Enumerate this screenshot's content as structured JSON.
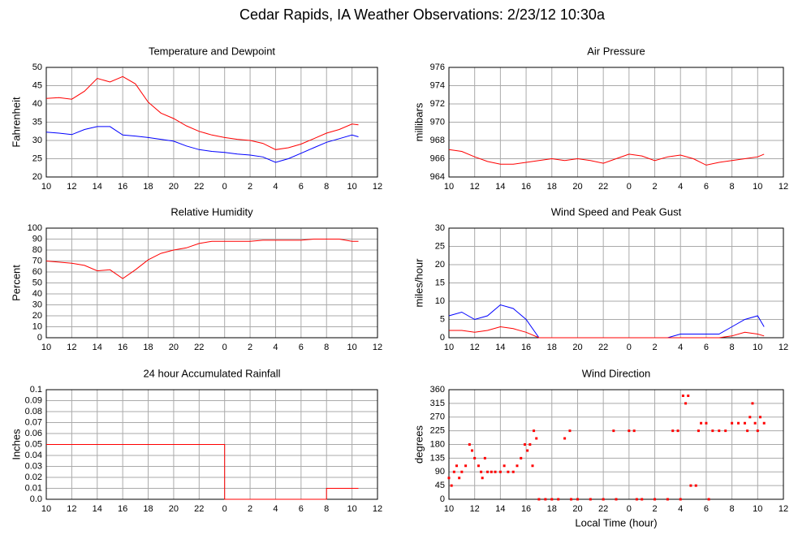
{
  "title": "Cedar Rapids, IA Weather Observations: 2/23/12 10:30a",
  "chart_data": [
    {
      "type": "line",
      "title": "Temperature and Dewpoint",
      "y_label": "Fahrenheit",
      "grid": true,
      "x": [
        10,
        11,
        12,
        13,
        14,
        15,
        16,
        17,
        18,
        19,
        20,
        21,
        22,
        23,
        24,
        25,
        26,
        27,
        28,
        29,
        30,
        31,
        32,
        33,
        34,
        34.5
      ],
      "series": [
        {
          "name": "Temperature",
          "color": "#ff0000",
          "values": [
            41.5,
            41.7,
            41.3,
            43.5,
            47,
            46,
            47.5,
            45.5,
            40.5,
            37.5,
            36,
            34,
            32.5,
            31.5,
            30.8,
            30.3,
            30,
            29.2,
            27.5,
            28,
            29,
            30.5,
            32,
            33,
            34.5,
            34.3
          ]
        },
        {
          "name": "Dewpoint",
          "color": "#0000ff",
          "values": [
            32.3,
            32,
            31.6,
            33,
            33.8,
            33.8,
            31.5,
            31.2,
            30.8,
            30.3,
            29.8,
            28.5,
            27.5,
            27,
            26.7,
            26.3,
            26,
            25.5,
            24,
            25,
            26.5,
            28,
            29.5,
            30.5,
            31.5,
            31
          ]
        }
      ],
      "xlim": [
        10,
        36
      ],
      "xticks": [
        10,
        12,
        14,
        16,
        18,
        20,
        22,
        {
          "value": 24,
          "label": "0"
        },
        {
          "value": 26,
          "label": "2"
        },
        {
          "value": 28,
          "label": "4"
        },
        {
          "value": 30,
          "label": "6"
        },
        {
          "value": 32,
          "label": "8"
        },
        {
          "value": 34,
          "label": "10"
        },
        {
          "value": 36,
          "label": "12"
        }
      ],
      "ylim": [
        20,
        50
      ],
      "yticks": [
        20,
        25,
        30,
        35,
        40,
        45,
        50
      ]
    },
    {
      "type": "line",
      "title": "Air Pressure",
      "y_label": "millibars",
      "grid": true,
      "x": [
        10,
        11,
        12,
        13,
        14,
        15,
        16,
        17,
        18,
        19,
        20,
        21,
        22,
        23,
        24,
        25,
        26,
        27,
        28,
        29,
        30,
        31,
        32,
        33,
        34,
        34.5
      ],
      "series": [
        {
          "name": "Pressure",
          "color": "#ff0000",
          "values": [
            967,
            966.8,
            966.2,
            965.7,
            965.4,
            965.4,
            965.6,
            965.8,
            966,
            965.8,
            966,
            965.8,
            965.5,
            966,
            966.5,
            966.3,
            965.8,
            966.2,
            966.4,
            966,
            965.3,
            965.6,
            965.8,
            966,
            966.2,
            966.5
          ]
        }
      ],
      "xlim": [
        10,
        36
      ],
      "xticks": [
        10,
        12,
        14,
        16,
        18,
        20,
        22,
        {
          "value": 24,
          "label": "0"
        },
        {
          "value": 26,
          "label": "2"
        },
        {
          "value": 28,
          "label": "4"
        },
        {
          "value": 30,
          "label": "6"
        },
        {
          "value": 32,
          "label": "8"
        },
        {
          "value": 34,
          "label": "10"
        },
        {
          "value": 36,
          "label": "12"
        }
      ],
      "ylim": [
        964,
        976
      ],
      "yticks": [
        964,
        966,
        968,
        970,
        972,
        974,
        976
      ]
    },
    {
      "type": "line",
      "title": "Relative Humidity",
      "y_label": "Percent",
      "grid": true,
      "x": [
        10,
        11,
        12,
        13,
        14,
        15,
        16,
        17,
        18,
        19,
        20,
        21,
        22,
        23,
        24,
        25,
        26,
        27,
        28,
        29,
        30,
        31,
        32,
        33,
        34,
        34.5
      ],
      "series": [
        {
          "name": "Relative Humidity",
          "color": "#ff0000",
          "values": [
            70,
            69,
            68,
            66,
            61,
            62,
            54,
            62,
            71,
            77,
            80,
            82,
            86,
            88,
            88,
            88,
            88,
            89,
            89,
            89,
            89,
            90,
            90,
            90,
            88,
            88
          ]
        }
      ],
      "xlim": [
        10,
        36
      ],
      "xticks": [
        10,
        12,
        14,
        16,
        18,
        20,
        22,
        {
          "value": 24,
          "label": "0"
        },
        {
          "value": 26,
          "label": "2"
        },
        {
          "value": 28,
          "label": "4"
        },
        {
          "value": 30,
          "label": "6"
        },
        {
          "value": 32,
          "label": "8"
        },
        {
          "value": 34,
          "label": "10"
        },
        {
          "value": 36,
          "label": "12"
        }
      ],
      "ylim": [
        0,
        100
      ],
      "yticks": [
        0,
        10,
        20,
        30,
        40,
        50,
        60,
        70,
        80,
        90,
        100
      ]
    },
    {
      "type": "line",
      "title": "Wind Speed and Peak Gust",
      "y_label": "miles/hour",
      "grid": true,
      "x": [
        10,
        11,
        12,
        13,
        14,
        15,
        16,
        17,
        18,
        19,
        20,
        21,
        22,
        23,
        24,
        25,
        26,
        27,
        28,
        29,
        30,
        31,
        32,
        33,
        34,
        34.5
      ],
      "series": [
        {
          "name": "Peak Gust",
          "color": "#0000ff",
          "values": [
            6,
            7,
            5,
            6,
            9,
            8,
            5,
            0,
            0,
            0,
            0,
            0,
            0,
            0,
            0,
            0,
            0,
            0,
            1,
            1,
            1,
            1,
            3,
            5,
            6,
            3
          ]
        },
        {
          "name": "Wind Speed",
          "color": "#ff0000",
          "values": [
            2,
            2,
            1.5,
            2,
            3,
            2.5,
            1.5,
            0,
            0,
            0,
            0,
            0,
            0,
            0,
            0,
            0,
            0,
            0,
            0,
            0,
            0,
            0,
            0.5,
            1.5,
            1,
            0.5
          ]
        }
      ],
      "xlim": [
        10,
        36
      ],
      "xticks": [
        10,
        12,
        14,
        16,
        18,
        20,
        22,
        {
          "value": 24,
          "label": "0"
        },
        {
          "value": 26,
          "label": "2"
        },
        {
          "value": 28,
          "label": "4"
        },
        {
          "value": 30,
          "label": "6"
        },
        {
          "value": 32,
          "label": "8"
        },
        {
          "value": 34,
          "label": "10"
        },
        {
          "value": 36,
          "label": "12"
        }
      ],
      "ylim": [
        0,
        30
      ],
      "yticks": [
        0,
        5,
        10,
        15,
        20,
        25,
        30
      ]
    },
    {
      "type": "line",
      "title": "24 hour Accumulated Rainfall",
      "y_label": "Inches",
      "grid": true,
      "x": [
        10,
        24,
        24,
        32,
        32,
        34.5
      ],
      "series": [
        {
          "name": "Rainfall",
          "color": "#ff0000",
          "values": [
            0.05,
            0.05,
            0,
            0,
            0.01,
            0.01
          ]
        }
      ],
      "xlim": [
        10,
        36
      ],
      "xticks": [
        10,
        12,
        14,
        16,
        18,
        20,
        22,
        {
          "value": 24,
          "label": "0"
        },
        {
          "value": 26,
          "label": "2"
        },
        {
          "value": 28,
          "label": "4"
        },
        {
          "value": 30,
          "label": "6"
        },
        {
          "value": 32,
          "label": "8"
        },
        {
          "value": 34,
          "label": "10"
        },
        {
          "value": 36,
          "label": "12"
        }
      ],
      "ylim": [
        0,
        0.1
      ],
      "yticks": [
        {
          "value": 0,
          "label": "0.0"
        },
        0.01,
        0.02,
        0.03,
        0.04,
        0.05,
        0.06,
        0.07,
        0.08,
        0.09,
        {
          "value": 0.1,
          "label": "0.1"
        }
      ]
    },
    {
      "type": "scatter",
      "title": "Wind Direction",
      "y_label": "degrees",
      "x_label": "Local Time (hour)",
      "grid": true,
      "color": "#ff0000",
      "x": [
        10,
        10.2,
        10.4,
        10.6,
        10.8,
        11,
        11.3,
        11.6,
        11.8,
        12,
        12.3,
        12.5,
        12.6,
        12.8,
        13,
        13.3,
        13.6,
        14,
        14.3,
        14.6,
        15,
        15.3,
        15.6,
        15.9,
        16.1,
        16.3,
        16.5,
        16.6,
        16.8,
        17,
        17.5,
        18,
        18.5,
        19,
        19.4,
        19.5,
        20,
        21,
        22,
        22.8,
        23,
        24,
        24.4,
        24.6,
        25,
        26,
        27,
        27.4,
        27.8,
        28,
        28.2,
        28.4,
        28.6,
        28.8,
        29.2,
        29.4,
        29.6,
        30,
        30.2,
        30.5,
        31,
        31.5,
        32,
        32.5,
        33,
        33.2,
        33.4,
        33.6,
        33.8,
        34,
        34.2,
        34.5
      ],
      "values": [
        70,
        45,
        90,
        110,
        70,
        90,
        110,
        180,
        160,
        135,
        110,
        90,
        70,
        135,
        90,
        90,
        90,
        90,
        110,
        90,
        90,
        110,
        135,
        180,
        160,
        180,
        110,
        225,
        200,
        0,
        0,
        0,
        0,
        200,
        225,
        0,
        0,
        0,
        0,
        225,
        0,
        225,
        225,
        0,
        0,
        0,
        0,
        225,
        225,
        0,
        340,
        315,
        340,
        45,
        45,
        225,
        250,
        250,
        0,
        225,
        225,
        225,
        250,
        250,
        250,
        225,
        270,
        315,
        250,
        225,
        270,
        250
      ],
      "xlim": [
        10,
        36
      ],
      "xticks": [
        10,
        12,
        14,
        16,
        18,
        20,
        22,
        {
          "value": 24,
          "label": "0"
        },
        {
          "value": 26,
          "label": "2"
        },
        {
          "value": 28,
          "label": "4"
        },
        {
          "value": 30,
          "label": "6"
        },
        {
          "value": 32,
          "label": "8"
        },
        {
          "value": 34,
          "label": "10"
        },
        {
          "value": 36,
          "label": "12"
        }
      ],
      "ylim": [
        0,
        360
      ],
      "yticks": [
        0,
        45,
        90,
        135,
        180,
        225,
        270,
        315,
        360
      ]
    }
  ]
}
